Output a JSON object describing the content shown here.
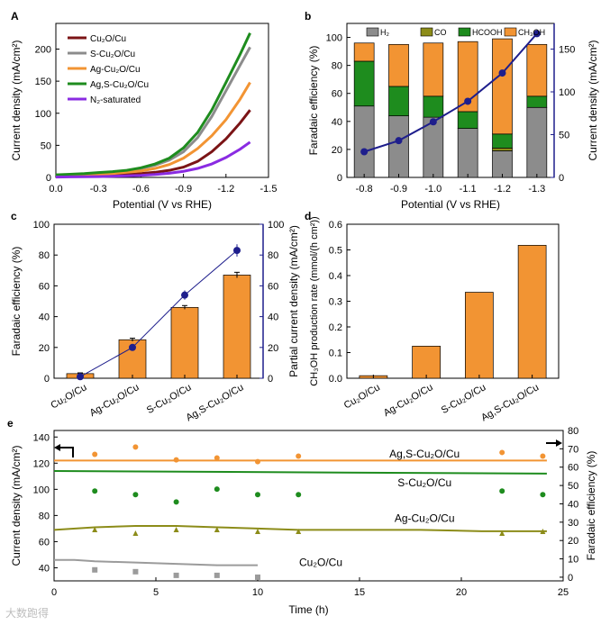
{
  "chart_data": [
    {
      "id": "a",
      "type": "line",
      "panel_label": "A",
      "xlabel": "Potential (V vs RHE)",
      "ylabel": "Current density (mA/cm²)",
      "xlim": [
        0.0,
        -1.5
      ],
      "ylim": [
        0,
        240
      ],
      "xticks": [
        "0.0",
        "-0.3",
        "-0.6",
        "-0.9",
        "-1.2",
        "-1.5"
      ],
      "yticks": [
        "0",
        "50",
        "100",
        "150",
        "200"
      ],
      "x": [
        0.0,
        -0.1,
        -0.2,
        -0.3,
        -0.4,
        -0.5,
        -0.6,
        -0.7,
        -0.8,
        -0.9,
        -1.0,
        -1.1,
        -1.2,
        -1.3,
        -1.37
      ],
      "series": [
        {
          "name": "Cu₂O/Cu",
          "color": "#7b1416",
          "values": [
            1,
            1.5,
            2,
            2.8,
            3.6,
            4.5,
            6,
            8,
            11,
            16,
            25,
            40,
            60,
            85,
            105
          ]
        },
        {
          "name": "S-Cu₂O/Cu",
          "color": "#8c8c8c",
          "values": [
            3,
            4,
            5,
            6.5,
            8,
            10,
            14,
            19,
            27,
            40,
            62,
            95,
            135,
            175,
            203
          ]
        },
        {
          "name": "Ag-Cu₂O/Cu",
          "color": "#f29433",
          "values": [
            2,
            2.5,
            3.5,
            4.5,
            6,
            8,
            10,
            14,
            20,
            30,
            45,
            65,
            90,
            122,
            148
          ]
        },
        {
          "name": "Ag,S-Cu₂O/Cu",
          "color": "#1e8c1e",
          "values": [
            4,
            5,
            6,
            7.5,
            9,
            11,
            15,
            21,
            30,
            46,
            70,
            105,
            148,
            192,
            225
          ]
        },
        {
          "name": "N₂-saturated",
          "color": "#8a2be2",
          "values": [
            0.5,
            0.8,
            1,
            1.3,
            1.8,
            2.4,
            3.2,
            4.5,
            6.5,
            9.5,
            14,
            21,
            31,
            44,
            55
          ]
        }
      ]
    },
    {
      "id": "b",
      "type": "bar",
      "panel_label": "b",
      "stacked": true,
      "xlabel": "Potential (V vs RHE)",
      "ylabel": "Faradaic efficiency (%)",
      "y2label": "Current density (mA/cm²)",
      "ylim": [
        0,
        110
      ],
      "y2lim": [
        0,
        180
      ],
      "yticks": [
        "0",
        "20",
        "40",
        "60",
        "80",
        "100"
      ],
      "y2ticks": [
        "0",
        "50",
        "100",
        "150"
      ],
      "categories": [
        "-0.8",
        "-0.9",
        "-1.0",
        "-1.1",
        "-1.2",
        "-1.3"
      ],
      "series": [
        {
          "name": "H₂",
          "color": "#8c8c8c",
          "values": [
            51,
            44,
            43,
            35,
            19,
            50
          ]
        },
        {
          "name": "CO",
          "color": "#8c8c19",
          "values": [
            0,
            0,
            0,
            0,
            2,
            0
          ]
        },
        {
          "name": "HCOOH",
          "color": "#1e8c1e",
          "values": [
            32,
            21,
            15,
            12,
            10,
            8
          ]
        },
        {
          "name": "CH₃OH",
          "color": "#f29433",
          "values": [
            13,
            30,
            38,
            50,
            68,
            37
          ]
        }
      ],
      "line": {
        "color": "#1e1e8c",
        "values": [
          30,
          43,
          65,
          89,
          122,
          168
        ]
      }
    },
    {
      "id": "c",
      "type": "bar",
      "panel_label": "c",
      "ylabel": "Faradaic efficiency (%)",
      "y2label": "Partial current density (mA/cm²)",
      "ylim": [
        0,
        100
      ],
      "y2lim": [
        0,
        100
      ],
      "yticks": [
        "0",
        "20",
        "40",
        "60",
        "80",
        "100"
      ],
      "y2ticks": [
        "0",
        "20",
        "40",
        "60",
        "80",
        "100"
      ],
      "categories": [
        "Cu₂O/Cu",
        "Ag-Cu₂O/Cu",
        "S-Cu₂O/Cu",
        "Ag,S-Cu₂O/Cu"
      ],
      "values": [
        3,
        25,
        46,
        67
      ],
      "errors": [
        0.5,
        1,
        1.2,
        1.8
      ],
      "bar_color": "#f29433",
      "line": {
        "color": "#1e1e8c",
        "values": [
          1,
          20,
          54,
          83
        ],
        "errors": [
          0.5,
          1,
          3,
          4
        ]
      }
    },
    {
      "id": "d",
      "type": "bar",
      "panel_label": "d",
      "ylabel": "CH₃OH production rate (mmol/(h cm²))",
      "ylim": [
        0,
        0.6
      ],
      "yticks": [
        "0.0",
        "0.1",
        "0.2",
        "0.3",
        "0.4",
        "0.5",
        "0.6"
      ],
      "categories": [
        "Cu₂O/Cu",
        "Ag-Cu₂O/Cu",
        "S-Cu₂O/Cu",
        "Ag,S-Cu₂O/Cu"
      ],
      "values": [
        0.01,
        0.125,
        0.335,
        0.518
      ],
      "bar_color": "#f29433"
    },
    {
      "id": "e",
      "type": "line",
      "panel_label": "e",
      "xlabel": "Time (h)",
      "ylabel": "Current density (mA/cm²)",
      "y2label": "Faradaic efficiency (%)",
      "xlim": [
        0,
        25
      ],
      "ylim": [
        30,
        145
      ],
      "y2lim": [
        -2,
        80
      ],
      "xticks": [
        "0",
        "5",
        "10",
        "15",
        "20",
        "25"
      ],
      "yticks": [
        "40",
        "60",
        "80",
        "100",
        "120",
        "140"
      ],
      "y2ticks": [
        "0",
        "10",
        "20",
        "30",
        "40",
        "50",
        "60",
        "70",
        "80"
      ],
      "series": [
        {
          "name": "Ag,S-Cu₂O/Cu",
          "color": "#f29433",
          "label_color": "#e07b10",
          "current": {
            "x": [
              0,
              24.2
            ],
            "y": [
              122,
              122
            ]
          },
          "fe": {
            "marker": "circle",
            "x": [
              2,
              4,
              6,
              8,
              10,
              12,
              22,
              24
            ],
            "y": [
              67,
              71,
              64,
              65,
              63,
              66,
              68,
              66
            ]
          }
        },
        {
          "name": "S-Cu₂O/Cu",
          "color": "#1e8c1e",
          "label_color": "#1e8c1e",
          "current": {
            "x": [
              0,
              24.2
            ],
            "y": [
              114,
              112
            ]
          },
          "fe": {
            "marker": "circle",
            "x": [
              2,
              4,
              6,
              8,
              10,
              12,
              22,
              24
            ],
            "y": [
              47,
              45,
              41,
              48,
              45,
              45,
              47,
              45
            ]
          }
        },
        {
          "name": "Ag-Cu₂O/Cu",
          "color": "#8c8c19",
          "label_color": "#8c8c19",
          "current": {
            "x": [
              0,
              2,
              4,
              6,
              8,
              10,
              12,
              15,
              18,
              21,
              24.2
            ],
            "y": [
              69,
              71,
              72,
              72,
              71,
              70,
              69,
              69,
              69,
              68,
              68
            ]
          },
          "fe": {
            "marker": "triangle",
            "x": [
              2,
              4,
              6,
              8,
              10,
              12,
              22,
              24
            ],
            "y": [
              26,
              24,
              26,
              26,
              25,
              25,
              24,
              25
            ]
          }
        },
        {
          "name": "Cu₂O/Cu",
          "color": "#9b9b9b",
          "label_color": "#9b9b9b",
          "current": {
            "x": [
              0,
              1,
              2,
              4,
              6,
              8,
              10
            ],
            "y": [
              46,
              46,
              45,
              44,
              43,
              42,
              42
            ]
          },
          "fe": {
            "marker": "square",
            "x": [
              2,
              4,
              6,
              8,
              10
            ],
            "y": [
              4,
              3,
              1,
              1,
              0
            ]
          }
        }
      ]
    }
  ],
  "watermark": "大数跑得"
}
